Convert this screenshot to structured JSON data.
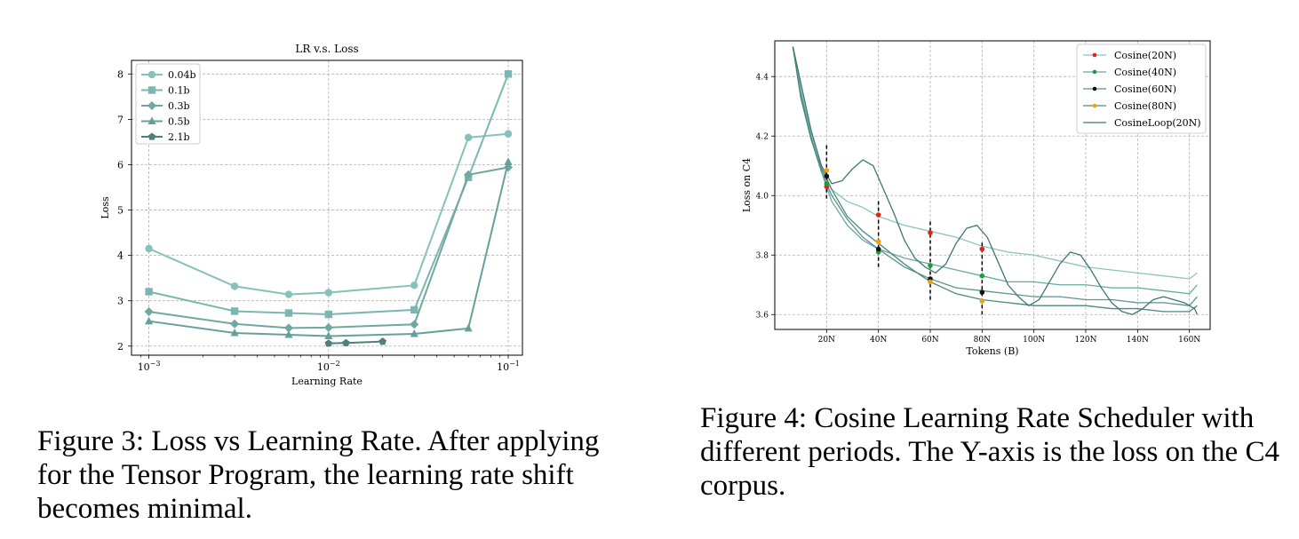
{
  "chart_data": [
    {
      "type": "line",
      "title": "LR v.s. Loss",
      "xlabel": "Learning Rate",
      "ylabel": "Loss",
      "xscale": "log",
      "xlim": [
        0.0008,
        0.12
      ],
      "ylim": [
        1.8,
        8.3
      ],
      "xticks": [
        {
          "v": 0.001,
          "base": "10",
          "exp": "−3"
        },
        {
          "v": 0.01,
          "base": "10",
          "exp": "−2"
        },
        {
          "v": 0.1,
          "base": "10",
          "exp": "−1"
        }
      ],
      "yticks": [
        2,
        3,
        4,
        5,
        6,
        7,
        8
      ],
      "grid": true,
      "legend_position": "top-left",
      "series": [
        {
          "name": "0.04b",
          "marker": "circle",
          "color": "#86c1bb",
          "x": [
            0.001,
            0.003,
            0.006,
            0.01,
            0.03,
            0.06,
            0.1
          ],
          "y": [
            4.15,
            3.32,
            3.14,
            3.18,
            3.34,
            6.6,
            6.68
          ]
        },
        {
          "name": "0.1b",
          "marker": "square",
          "color": "#7bb6b0",
          "x": [
            0.001,
            0.003,
            0.006,
            0.01,
            0.03,
            0.06,
            0.1
          ],
          "y": [
            3.2,
            2.77,
            2.73,
            2.7,
            2.8,
            5.72,
            8.0
          ]
        },
        {
          "name": "0.3b",
          "marker": "diamond",
          "color": "#6fa7a1",
          "x": [
            0.001,
            0.003,
            0.006,
            0.01,
            0.03,
            0.06,
            0.1
          ],
          "y": [
            2.76,
            2.49,
            2.4,
            2.41,
            2.48,
            5.78,
            5.94
          ]
        },
        {
          "name": "0.5b",
          "marker": "triangle",
          "color": "#65a09a",
          "x": [
            0.001,
            0.003,
            0.006,
            0.01,
            0.03,
            0.06,
            0.1
          ],
          "y": [
            2.55,
            2.29,
            2.25,
            2.22,
            2.27,
            2.39,
            6.06
          ]
        },
        {
          "name": "2.1b",
          "marker": "pentagon",
          "color": "#4f807b",
          "x": [
            0.01,
            0.0125,
            0.02
          ],
          "y": [
            2.06,
            2.07,
            2.1
          ]
        }
      ]
    },
    {
      "type": "line",
      "title": "",
      "xlabel": "Tokens (B)",
      "ylabel": "Loss on C4",
      "xlim": [
        0,
        168
      ],
      "ylim": [
        3.55,
        4.52
      ],
      "xticks": [
        {
          "v": 20,
          "label": "20N"
        },
        {
          "v": 40,
          "label": "40N"
        },
        {
          "v": 60,
          "label": "60N"
        },
        {
          "v": 80,
          "label": "80N"
        },
        {
          "v": 100,
          "label": "100N"
        },
        {
          "v": 120,
          "label": "120N"
        },
        {
          "v": 140,
          "label": "140N"
        },
        {
          "v": 160,
          "label": "160N"
        }
      ],
      "yticks": [
        3.6,
        3.8,
        4.0,
        4.2,
        4.4
      ],
      "grid": true,
      "legend_position": "top-right",
      "series": [
        {
          "name": "Cosine(20N)",
          "color": "#87c7be",
          "marker_color": "#e0241b",
          "x": [
            7,
            10,
            14,
            18,
            22,
            28,
            34,
            40,
            50,
            60,
            70,
            80,
            90,
            100,
            110,
            120,
            130,
            140,
            150,
            160,
            163
          ],
          "y": [
            4.5,
            4.36,
            4.21,
            4.1,
            4.02,
            3.98,
            3.96,
            3.93,
            3.9,
            3.88,
            3.86,
            3.83,
            3.81,
            3.8,
            3.78,
            3.76,
            3.75,
            3.74,
            3.73,
            3.72,
            3.74
          ],
          "markers": [
            {
              "x": 20,
              "y": 4.03
            },
            {
              "x": 40,
              "y": 3.935
            },
            {
              "x": 60,
              "y": 3.875
            },
            {
              "x": 80,
              "y": 3.82
            }
          ]
        },
        {
          "name": "Cosine(40N)",
          "color": "#66aa9f",
          "marker_color": "#1f9a3d",
          "x": [
            7,
            10,
            14,
            18,
            22,
            28,
            34,
            40,
            50,
            60,
            70,
            80,
            90,
            100,
            110,
            120,
            130,
            140,
            150,
            160,
            163
          ],
          "y": [
            4.5,
            4.35,
            4.2,
            4.08,
            3.98,
            3.9,
            3.85,
            3.82,
            3.79,
            3.77,
            3.75,
            3.73,
            3.71,
            3.71,
            3.7,
            3.7,
            3.69,
            3.69,
            3.68,
            3.67,
            3.7
          ],
          "markers": [
            {
              "x": 20,
              "y": 4.04
            },
            {
              "x": 40,
              "y": 3.81
            },
            {
              "x": 60,
              "y": 3.765
            },
            {
              "x": 80,
              "y": 3.73
            }
          ]
        },
        {
          "name": "Cosine(60N)",
          "color": "#5c948d",
          "marker_color": "#111111",
          "x": [
            7,
            10,
            14,
            18,
            22,
            28,
            34,
            40,
            50,
            60,
            70,
            80,
            90,
            100,
            110,
            120,
            130,
            140,
            150,
            160,
            163
          ],
          "y": [
            4.5,
            4.34,
            4.19,
            4.08,
            4.0,
            3.92,
            3.86,
            3.82,
            3.76,
            3.72,
            3.69,
            3.68,
            3.67,
            3.66,
            3.66,
            3.65,
            3.65,
            3.64,
            3.64,
            3.63,
            3.66
          ],
          "markers": [
            {
              "x": 20,
              "y": 4.065
            },
            {
              "x": 40,
              "y": 3.82
            },
            {
              "x": 60,
              "y": 3.72
            },
            {
              "x": 80,
              "y": 3.675
            }
          ]
        },
        {
          "name": "Cosine(80N)",
          "color": "#4e8780",
          "marker_color": "#f0a20a",
          "x": [
            7,
            10,
            14,
            18,
            22,
            28,
            34,
            40,
            50,
            60,
            70,
            80,
            90,
            100,
            110,
            120,
            130,
            140,
            150,
            160,
            163
          ],
          "y": [
            4.5,
            4.33,
            4.19,
            4.09,
            4.02,
            3.93,
            3.88,
            3.84,
            3.77,
            3.71,
            3.67,
            3.65,
            3.64,
            3.63,
            3.63,
            3.63,
            3.62,
            3.62,
            3.61,
            3.61,
            3.63
          ],
          "markers": [
            {
              "x": 20,
              "y": 4.085
            },
            {
              "x": 40,
              "y": 3.845
            },
            {
              "x": 60,
              "y": 3.71
            },
            {
              "x": 80,
              "y": 3.645
            }
          ]
        },
        {
          "name": "CosineLoop(20N)",
          "color": "#3f7772",
          "x": [
            7,
            10,
            14,
            18,
            22,
            26,
            30,
            34,
            38,
            42,
            46,
            50,
            54,
            58,
            62,
            66,
            70,
            74,
            78,
            82,
            86,
            90,
            94,
            98,
            102,
            106,
            110,
            114,
            118,
            122,
            126,
            130,
            134,
            138,
            142,
            146,
            150,
            154,
            158,
            162,
            163
          ],
          "y": [
            4.5,
            4.38,
            4.22,
            4.1,
            4.04,
            4.05,
            4.09,
            4.12,
            4.1,
            4.02,
            3.94,
            3.85,
            3.79,
            3.76,
            3.74,
            3.77,
            3.84,
            3.89,
            3.9,
            3.86,
            3.78,
            3.7,
            3.66,
            3.63,
            3.65,
            3.71,
            3.77,
            3.81,
            3.8,
            3.75,
            3.69,
            3.64,
            3.61,
            3.6,
            3.62,
            3.65,
            3.66,
            3.65,
            3.64,
            3.62,
            3.6
          ]
        }
      ],
      "dashed_lines": [
        {
          "x": 20,
          "y1": 3.99,
          "y2": 4.17
        },
        {
          "x": 40,
          "y1": 3.76,
          "y2": 3.99
        },
        {
          "x": 60,
          "y1": 3.65,
          "y2": 3.92
        },
        {
          "x": 80,
          "y1": 3.6,
          "y2": 3.85
        }
      ]
    }
  ],
  "captions": {
    "fig3": "Figure 3: Loss vs Learning Rate. After applying for the Tensor Program, the learning rate shift becomes minimal.",
    "fig4": "Figure 4: Cosine Learning Rate Scheduler with different periods.  The Y-axis is the loss on the C4 corpus."
  }
}
